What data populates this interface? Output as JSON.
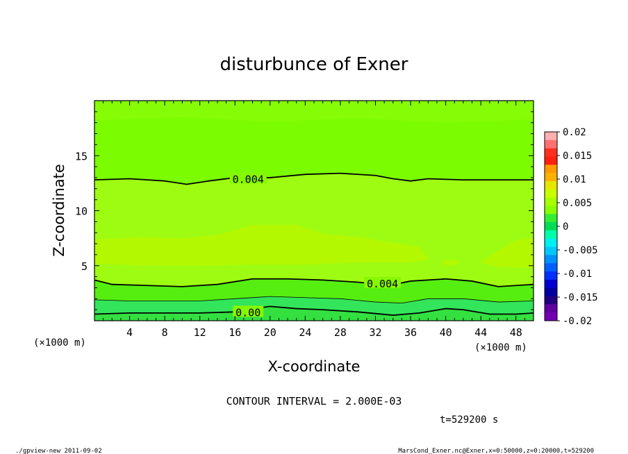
{
  "chart_data": {
    "type": "contour",
    "title": "disturbunce of Exner",
    "xlabel": "X-coordinate",
    "ylabel": "Z-coordinate",
    "x_unit": "(×1000 m)",
    "y_unit": "(×1000 m)",
    "xlim": [
      0,
      50
    ],
    "ylim": [
      0,
      20
    ],
    "x_ticks": [
      4,
      8,
      12,
      16,
      20,
      24,
      28,
      32,
      36,
      40,
      44,
      48
    ],
    "y_ticks": [
      5,
      10,
      15
    ],
    "contour_interval_text": "CONTOUR INTERVAL = 2.000E-03",
    "time_text": "t=529200 s",
    "contour_labels": [
      {
        "text": "0.004",
        "x": 17.5,
        "z": 12.9
      },
      {
        "text": "0.004",
        "x": 32.8,
        "z": 3.4
      },
      {
        "text": "0.00",
        "x": 17.5,
        "z": 0.8
      }
    ],
    "contour_lines": [
      {
        "level": 0.004,
        "points": [
          [
            0,
            12.8
          ],
          [
            4,
            12.9
          ],
          [
            8,
            12.7
          ],
          [
            10.5,
            12.4
          ],
          [
            13,
            12.7
          ],
          [
            16,
            13.0
          ],
          [
            20,
            13.0
          ],
          [
            24,
            13.3
          ],
          [
            28,
            13.4
          ],
          [
            32,
            13.2
          ],
          [
            34,
            12.9
          ],
          [
            36,
            12.7
          ],
          [
            38,
            12.9
          ],
          [
            42,
            12.8
          ],
          [
            46,
            12.8
          ],
          [
            50,
            12.8
          ]
        ]
      },
      {
        "level": 0.004,
        "points": [
          [
            0,
            3.7
          ],
          [
            2,
            3.3
          ],
          [
            6,
            3.2
          ],
          [
            10,
            3.1
          ],
          [
            14,
            3.3
          ],
          [
            18,
            3.8
          ],
          [
            22,
            3.8
          ],
          [
            26,
            3.7
          ],
          [
            30,
            3.5
          ],
          [
            33.5,
            3.2
          ],
          [
            36,
            3.6
          ],
          [
            40,
            3.8
          ],
          [
            43,
            3.6
          ],
          [
            46,
            3.1
          ],
          [
            50,
            3.3
          ]
        ]
      },
      {
        "level": 0.002,
        "points": [
          [
            0,
            1.9
          ],
          [
            4,
            1.8
          ],
          [
            8,
            1.8
          ],
          [
            12,
            1.8
          ],
          [
            16,
            2.0
          ],
          [
            20,
            2.2
          ],
          [
            24,
            2.1
          ],
          [
            28,
            2.0
          ],
          [
            32,
            1.7
          ],
          [
            35,
            1.6
          ],
          [
            38,
            2.0
          ],
          [
            42,
            2.0
          ],
          [
            46,
            1.7
          ],
          [
            50,
            1.8
          ]
        ]
      },
      {
        "level": 0.0,
        "points": [
          [
            0,
            0.6
          ],
          [
            4,
            0.7
          ],
          [
            8,
            0.7
          ],
          [
            12,
            0.7
          ],
          [
            16,
            0.8
          ],
          [
            18,
            1.1
          ],
          [
            20,
            1.3
          ],
          [
            23,
            1.1
          ],
          [
            26,
            1.0
          ],
          [
            30,
            0.8
          ],
          [
            34,
            0.5
          ],
          [
            37,
            0.7
          ],
          [
            40,
            1.1
          ],
          [
            42,
            1.0
          ],
          [
            45,
            0.6
          ],
          [
            48,
            0.6
          ],
          [
            50,
            0.7
          ]
        ]
      }
    ],
    "colorbar": {
      "levels": [
        "0.02",
        "0.015",
        "0.01",
        "0.005",
        "0",
        "-0.005",
        "-0.01",
        "-0.015",
        "-0.02"
      ],
      "colors": [
        "#ffb0b0",
        "#ff7070",
        "#ff3020",
        "#ff2010",
        "#ff9a00",
        "#ffb000",
        "#e6e600",
        "#c8ff00",
        "#a8ff00",
        "#88ff00",
        "#33ee33",
        "#00dd55",
        "#00ffaa",
        "#00f0f0",
        "#00c8ff",
        "#0090ff",
        "#0060ff",
        "#0030ff",
        "#0000d0",
        "#0000a0",
        "#200080",
        "#6000a0",
        "#7000b0"
      ]
    },
    "fill_bands": [
      {
        "level": "0.002-0.004",
        "color": "#7cfc00"
      },
      {
        "level": "0.004-0.006",
        "color": "#9efc12"
      },
      {
        "level": "0.006-0.008",
        "color": "#b4f800"
      },
      {
        "level": "0-0.002",
        "color": "#55ee10"
      },
      {
        "level": "<0",
        "color": "#33e55a"
      }
    ]
  },
  "footer": {
    "left": "./gpview-new  2011-09-02",
    "right": "MarsCond_Exner.nc@Exner,x=0:50000,z=0:20000,t=529200"
  }
}
